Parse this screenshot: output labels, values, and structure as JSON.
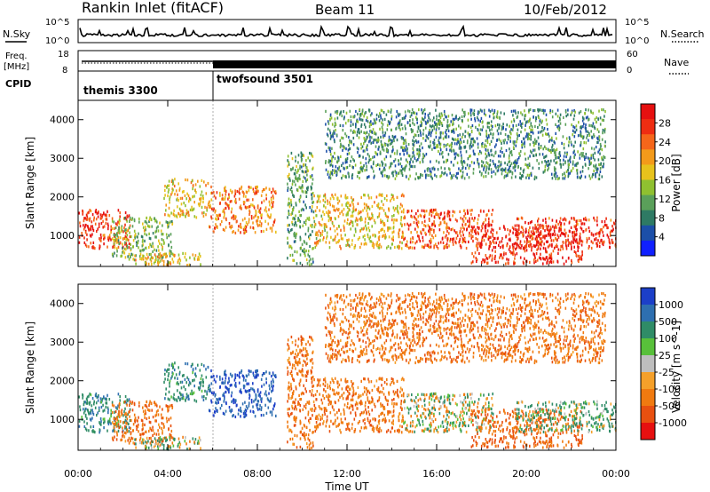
{
  "header": {
    "station": "Rankin Inlet (fitACF)",
    "beam": "Beam 11",
    "date": "10/Feb/2012"
  },
  "status_panels": {
    "nsky_label": "N.Sky",
    "nsky_ticks": [
      "10^5",
      "10^0"
    ],
    "nsearch_label": "N.Search",
    "nsearch_ticks": [
      "10^5",
      "10^0"
    ],
    "freq_label": "Freq.",
    "freq_unit": "[MHz]",
    "freq_ticks": [
      "18",
      "8"
    ],
    "nave_label": "Nave",
    "nave_ticks": [
      "60",
      "0"
    ],
    "cpid_label": "CPID",
    "cpid_segments": [
      {
        "name": "themis 3300",
        "start_hour": 0,
        "end_hour": 6
      },
      {
        "name": "twofsound 3501",
        "start_hour": 6,
        "end_hour": 24
      }
    ]
  },
  "chart_data": [
    {
      "type": "heatmap",
      "title": "Power",
      "ylabel": "Slant Range [km]",
      "xlabel": "Time UT",
      "xlim": [
        0,
        24
      ],
      "ylim": [
        200,
        4500
      ],
      "x_ticks": [
        "00:00",
        "04:00",
        "08:00",
        "12:00",
        "16:00",
        "20:00",
        "00:00"
      ],
      "y_ticks": [
        1000,
        2000,
        3000,
        4000
      ],
      "colorbar": {
        "label": "Power [dB]",
        "ticks": [
          "4",
          "8",
          "12",
          "16",
          "20",
          "24",
          "28"
        ],
        "colors": [
          "#1020ff",
          "#1c4fa8",
          "#2e7a64",
          "#5aa05a",
          "#8fc030",
          "#e7c21c",
          "#f39a1a",
          "#f5661a",
          "#ee2d12",
          "#e61010"
        ]
      },
      "echo_regions": [
        {
          "t0": 0.0,
          "t1": 2.3,
          "r0": 700,
          "r1": 1700,
          "value": 26
        },
        {
          "t0": 1.5,
          "t1": 4.2,
          "r0": 400,
          "r1": 1500,
          "value": 14
        },
        {
          "t0": 2.5,
          "t1": 5.5,
          "r0": 250,
          "r1": 600,
          "value": 18
        },
        {
          "t0": 3.8,
          "t1": 5.8,
          "r0": 1500,
          "r1": 2500,
          "value": 18
        },
        {
          "t0": 5.8,
          "t1": 8.8,
          "r0": 1100,
          "r1": 2300,
          "value": 22
        },
        {
          "t0": 9.3,
          "t1": 10.5,
          "r0": 250,
          "r1": 3200,
          "value": 12
        },
        {
          "t0": 10.5,
          "t1": 14.5,
          "r0": 700,
          "r1": 2100,
          "value": 18
        },
        {
          "t0": 14.5,
          "t1": 18.5,
          "r0": 700,
          "r1": 1700,
          "value": 24
        },
        {
          "t0": 17.5,
          "t1": 22.5,
          "r0": 300,
          "r1": 1300,
          "value": 27
        },
        {
          "t0": 19.5,
          "t1": 24.0,
          "r0": 700,
          "r1": 1500,
          "value": 26
        },
        {
          "t0": 11.0,
          "t1": 23.5,
          "r0": 2500,
          "r1": 4300,
          "value": 10
        }
      ]
    },
    {
      "type": "heatmap",
      "title": "Velocity",
      "ylabel": "Slant Range [km]",
      "xlabel": "Time UT",
      "xlim": [
        0,
        24
      ],
      "ylim": [
        200,
        4500
      ],
      "x_ticks": [
        "00:00",
        "04:00",
        "08:00",
        "12:00",
        "16:00",
        "20:00",
        "00:00"
      ],
      "y_ticks": [
        1000,
        2000,
        3000,
        4000
      ],
      "colorbar": {
        "label": "Velocity [m s^-1]",
        "ticks": [
          "1000",
          "500",
          "100",
          "25",
          "-25",
          "-100",
          "-500",
          "-1000"
        ],
        "colors": [
          "#1c3fc8",
          "#2e6fb0",
          "#2f8c67",
          "#58c03a",
          "#bebebe",
          "#f5a02a",
          "#f07a10",
          "#e85010",
          "#e61010"
        ]
      },
      "echo_regions": [
        {
          "t0": 0.0,
          "t1": 2.3,
          "r0": 700,
          "r1": 1700,
          "value": 300
        },
        {
          "t0": 1.5,
          "t1": 4.2,
          "r0": 400,
          "r1": 1500,
          "value": -300
        },
        {
          "t0": 2.5,
          "t1": 5.5,
          "r0": 250,
          "r1": 600,
          "value": 50
        },
        {
          "t0": 3.8,
          "t1": 5.8,
          "r0": 1500,
          "r1": 2500,
          "value": 300
        },
        {
          "t0": 5.8,
          "t1": 8.8,
          "r0": 1100,
          "r1": 2300,
          "value": 800
        },
        {
          "t0": 9.3,
          "t1": 10.5,
          "r0": 250,
          "r1": 3200,
          "value": -300
        },
        {
          "t0": 10.5,
          "t1": 14.5,
          "r0": 700,
          "r1": 2100,
          "value": -300
        },
        {
          "t0": 14.5,
          "t1": 18.5,
          "r0": 700,
          "r1": 1700,
          "value": 0
        },
        {
          "t0": 17.5,
          "t1": 22.5,
          "r0": 300,
          "r1": 1300,
          "value": -400
        },
        {
          "t0": 19.5,
          "t1": 24.0,
          "r0": 700,
          "r1": 1500,
          "value": 150
        },
        {
          "t0": 11.0,
          "t1": 23.5,
          "r0": 2500,
          "r1": 4300,
          "value": -300
        }
      ]
    }
  ]
}
